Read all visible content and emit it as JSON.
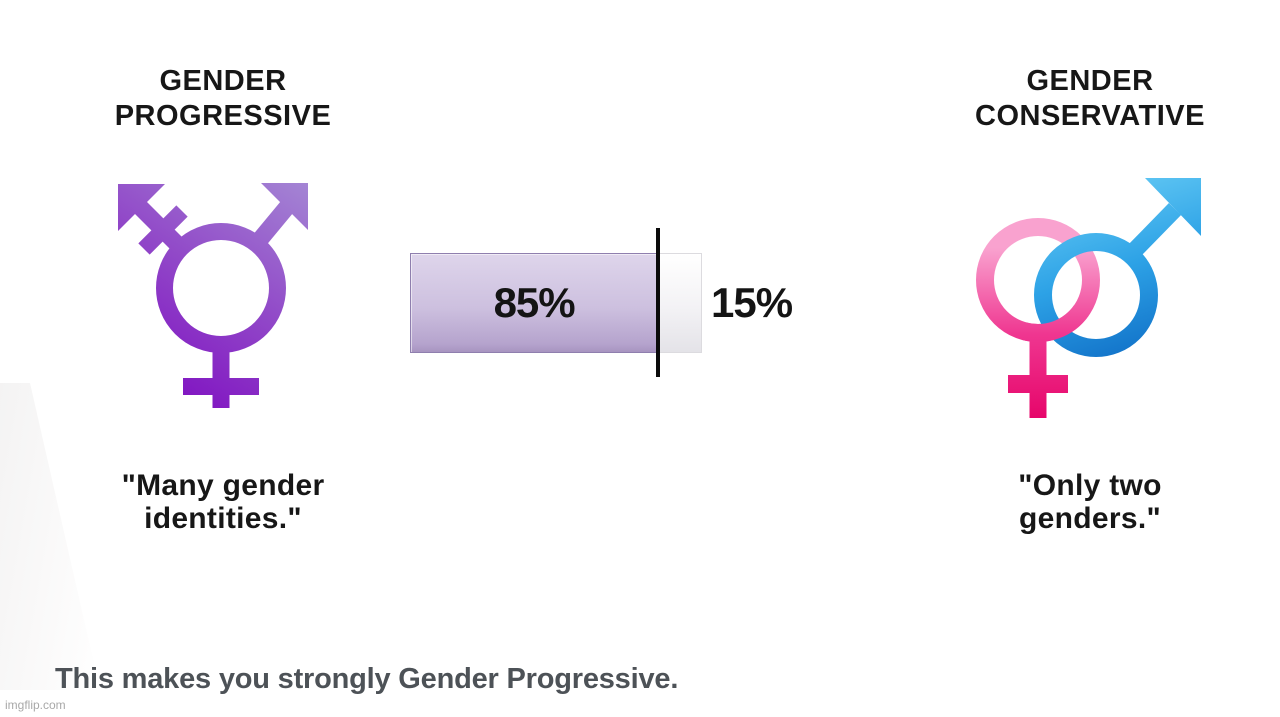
{
  "left": {
    "title_line1": "GENDER",
    "title_line2": "PROGRESSIVE",
    "icon": "transgender-symbol",
    "quote_line1": "\"Many gender",
    "quote_line2": "identities.\""
  },
  "right": {
    "title_line1": "GENDER",
    "title_line2": "CONSERVATIVE",
    "icon": "female-male-interlocked-symbol",
    "quote_line1": "\"Only two",
    "quote_line2": "genders.\""
  },
  "chart_data": {
    "type": "bar",
    "orientation": "horizontal",
    "categories": [
      "Gender Progressive",
      "Gender Conservative"
    ],
    "values": [
      85,
      15
    ],
    "unit": "percent",
    "labels": {
      "left": "85%",
      "right": "15%"
    },
    "marker_position_percent": 85,
    "colors": {
      "fill": "#cdc0df",
      "fill_border": "#8f7fae",
      "remainder": "#f3f2f5",
      "marker": "#0b0b0b",
      "trans_symbol_top": "#a78fd6",
      "trans_symbol_bottom": "#7c05c0",
      "female_symbol_top": "#f9a2cf",
      "female_symbol_bottom": "#e60469",
      "male_symbol_top": "#66cbf5",
      "male_symbol_bottom": "#106fc7"
    }
  },
  "result": {
    "text": "This makes you strongly Gender Progressive."
  },
  "meta": {
    "watermark": "imgflip.com"
  }
}
